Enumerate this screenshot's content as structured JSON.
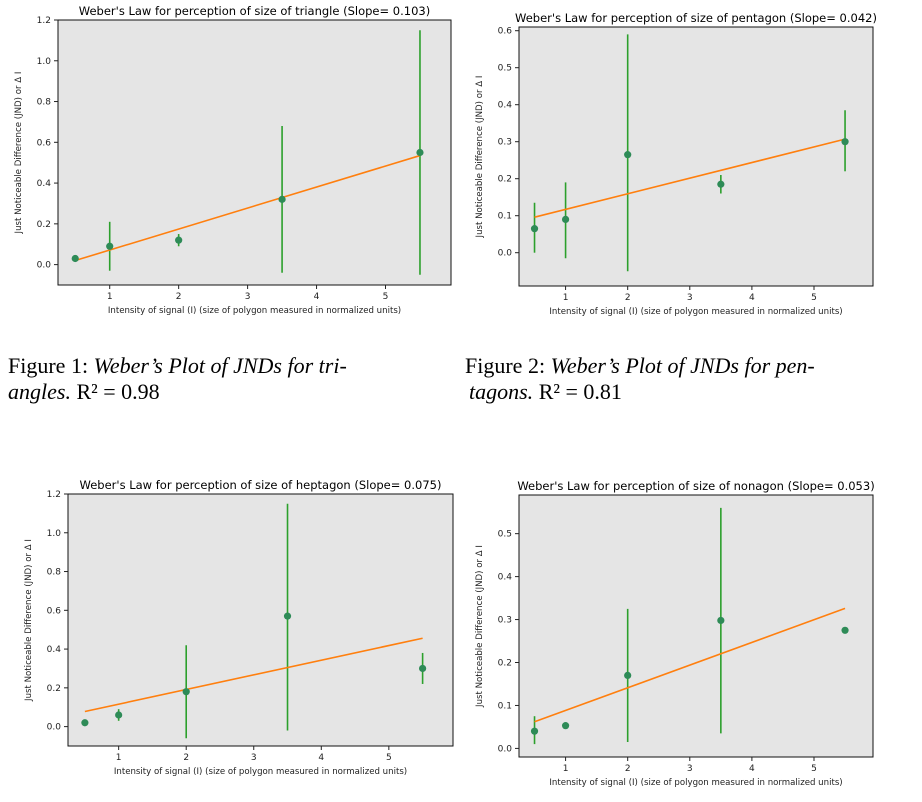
{
  "common": {
    "xlabel": "Intensity of signal (I) (size of polygon measured in normalized units)",
    "ylabel": "Just Noticeable Difference (JND) or Δ I",
    "colors": {
      "background": "#e5e5e5",
      "fit": "#ff7f0e",
      "errorbar": "#2ca02c",
      "point": "#2e8b57"
    }
  },
  "captions": [
    {
      "label": "Figure 1:",
      "text": "Weber’s Plot of JNDs for tri-",
      "text2": "angles.",
      "r2": "R² = 0.98"
    },
    {
      "label": "Figure 2:",
      "text": "Weber’s Plot of JNDs for pen-",
      "text2": "tagons.",
      "r2": "R² = 0.81"
    }
  ],
  "chart_data": [
    {
      "type": "scatter",
      "title": "Weber's Law for perception of size of triangle (Slope= 0.103)",
      "xlabel": "Intensity of signal (I) (size of polygon measured in normalized units)",
      "ylabel": "Just Noticeable Difference (JND) or Δ I",
      "x": [
        0.5,
        1,
        2,
        3.5,
        5.5
      ],
      "y": [
        0.03,
        0.09,
        0.12,
        0.32,
        0.55
      ],
      "err_low": [
        0.03,
        -0.03,
        0.09,
        -0.04,
        -0.05
      ],
      "err_high": [
        0.03,
        0.21,
        0.15,
        0.68,
        1.15
      ],
      "fit": {
        "x": [
          0.5,
          5.5
        ],
        "y": [
          0.02,
          0.535
        ]
      },
      "xlim": [
        0.25,
        5.95
      ],
      "ylim": [
        -0.1,
        1.2
      ],
      "xticks": [
        1,
        2,
        3,
        4,
        5
      ],
      "yticks": [
        0.0,
        0.2,
        0.4,
        0.6,
        0.8,
        1.0,
        1.2
      ],
      "ytick_labels": [
        "0.0",
        "0.2",
        "0.4",
        "0.6",
        "0.8",
        "1.0",
        "1.2"
      ]
    },
    {
      "type": "scatter",
      "title": "Weber's Law for perception of size of pentagon (Slope= 0.042)",
      "xlabel": "Intensity of signal (I) (size of polygon measured in normalized units)",
      "ylabel": "Just Noticeable Difference (JND) or Δ I",
      "x": [
        0.5,
        1,
        2,
        3.5,
        5.5
      ],
      "y": [
        0.065,
        0.09,
        0.265,
        0.185,
        0.3
      ],
      "err_low": [
        0.0,
        -0.015,
        -0.05,
        0.16,
        0.22
      ],
      "err_high": [
        0.135,
        0.19,
        0.59,
        0.21,
        0.385
      ],
      "fit": {
        "x": [
          0.5,
          5.5
        ],
        "y": [
          0.096,
          0.307
        ]
      },
      "xlim": [
        0.25,
        5.95
      ],
      "ylim": [
        -0.09,
        0.61
      ],
      "xticks": [
        1,
        2,
        3,
        4,
        5
      ],
      "yticks": [
        0.0,
        0.1,
        0.2,
        0.3,
        0.4,
        0.5,
        0.6
      ],
      "ytick_labels": [
        "0.0",
        "0.1",
        "0.2",
        "0.3",
        "0.4",
        "0.5",
        "0.6"
      ]
    },
    {
      "type": "scatter",
      "title": "Weber's Law for perception of size of heptagon (Slope= 0.075)",
      "xlabel": "Intensity of signal (I) (size of polygon measured in normalized units)",
      "ylabel": "Just Noticeable Difference (JND) or Δ I",
      "x": [
        0.5,
        1,
        2,
        3.5,
        5.5
      ],
      "y": [
        0.02,
        0.06,
        0.18,
        0.57,
        0.3
      ],
      "err_low": [
        0.02,
        0.03,
        -0.06,
        -0.02,
        0.22
      ],
      "err_high": [
        0.02,
        0.09,
        0.42,
        1.15,
        0.38
      ],
      "fit": {
        "x": [
          0.5,
          5.5
        ],
        "y": [
          0.078,
          0.456
        ]
      },
      "xlim": [
        0.25,
        5.95
      ],
      "ylim": [
        -0.1,
        1.2
      ],
      "xticks": [
        1,
        2,
        3,
        4,
        5
      ],
      "yticks": [
        0.0,
        0.2,
        0.4,
        0.6,
        0.8,
        1.0,
        1.2
      ],
      "ytick_labels": [
        "0.0",
        "0.2",
        "0.4",
        "0.6",
        "0.8",
        "1.0",
        "1.2"
      ]
    },
    {
      "type": "scatter",
      "title": "Weber's Law for perception of size of nonagon (Slope= 0.053)",
      "xlabel": "Intensity of signal (I) (size of polygon measured in normalized units)",
      "ylabel": "Just Noticeable Difference (JND) or Δ I",
      "x": [
        0.5,
        1,
        2,
        3.5,
        5.5
      ],
      "y": [
        0.04,
        0.053,
        0.17,
        0.298,
        0.275
      ],
      "err_low": [
        0.01,
        0.053,
        0.015,
        0.035,
        0.275
      ],
      "err_high": [
        0.075,
        0.053,
        0.325,
        0.56,
        0.275
      ],
      "fit": {
        "x": [
          0.5,
          5.5
        ],
        "y": [
          0.062,
          0.326
        ]
      },
      "xlim": [
        0.25,
        5.95
      ],
      "ylim": [
        -0.02,
        0.59
      ],
      "xticks": [
        1,
        2,
        3,
        4,
        5
      ],
      "yticks": [
        0.0,
        0.1,
        0.2,
        0.3,
        0.4,
        0.5
      ],
      "ytick_labels": [
        "0.0",
        "0.1",
        "0.2",
        "0.3",
        "0.4",
        "0.5"
      ]
    }
  ]
}
